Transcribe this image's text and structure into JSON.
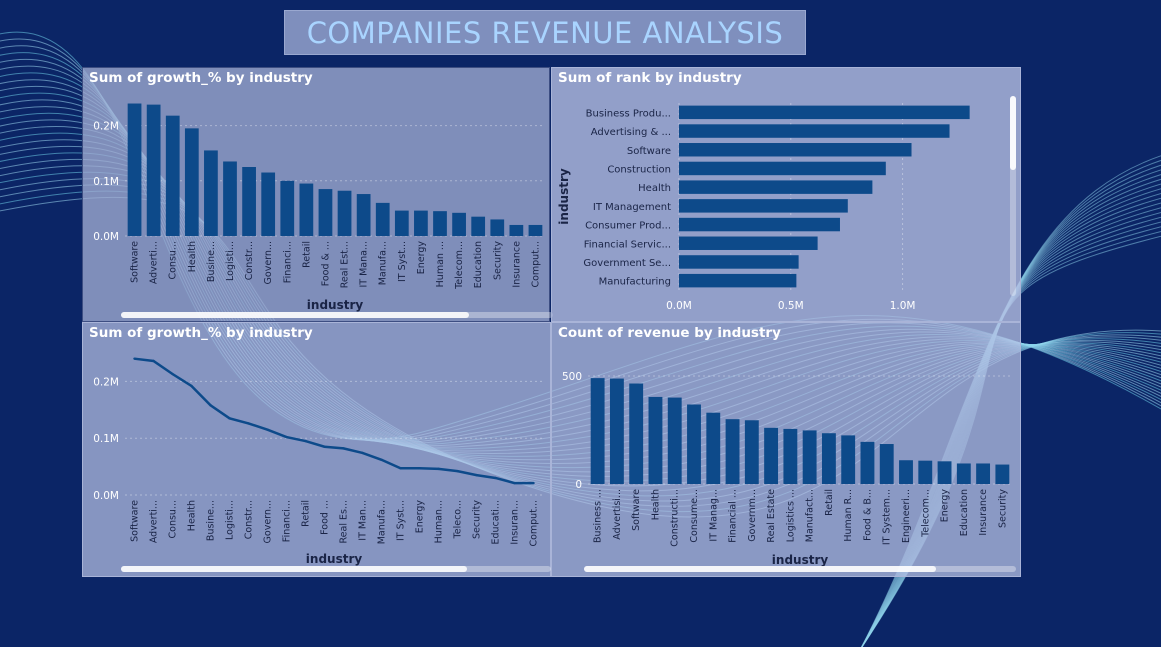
{
  "page_title": "COMPANIES REVENUE ANALYSIS",
  "colors": {
    "background": "#0b2566",
    "bar": "#0d4a8a",
    "panel": "#b8c3e6",
    "title_text": "#a9d4ff"
  },
  "chart_data": [
    {
      "type": "bar",
      "title": "Sum of growth_% by industry",
      "xlabel": "industry",
      "ylabel": "",
      "categories": [
        "Software",
        "Adverti...",
        "Consu...",
        "Health",
        "Busine...",
        "Logisti...",
        "Constr...",
        "Govern...",
        "Financi...",
        "Retail",
        "Food & ...",
        "Real Est...",
        "IT Mana...",
        "Manufa...",
        "IT Syst...",
        "Energy",
        "Human ...",
        "Telecom...",
        "Education",
        "Security",
        "Insurance",
        "Comput..."
      ],
      "values": [
        240000,
        238000,
        218000,
        195000,
        155000,
        135000,
        125000,
        115000,
        100000,
        95000,
        85000,
        82000,
        76000,
        60000,
        46000,
        46000,
        45000,
        42000,
        35000,
        30000,
        20000,
        20000
      ],
      "yticks": [
        "0.0M",
        "0.1M",
        "0.2M"
      ],
      "ylim": [
        0,
        250000
      ],
      "grid": true
    },
    {
      "type": "bar",
      "orientation": "horizontal",
      "title": "Sum of rank by industry",
      "xlabel": "",
      "ylabel": "industry",
      "categories": [
        "Business Produ...",
        "Advertising & ...",
        "Software",
        "Construction",
        "Health",
        "IT Management",
        "Consumer Prod...",
        "Financial Servic...",
        "Government Se...",
        "Manufacturing"
      ],
      "values": [
        1300000,
        1210000,
        1040000,
        925000,
        865000,
        755000,
        720000,
        620000,
        535000,
        525000
      ],
      "xticks": [
        "0.0M",
        "0.5M",
        "1.0M"
      ],
      "xlim": [
        0,
        1400000
      ],
      "grid": true
    },
    {
      "type": "line",
      "title": "Sum of growth_% by industry",
      "xlabel": "industry",
      "ylabel": "",
      "categories": [
        "Software",
        "Adverti...",
        "Consu...",
        "Health",
        "Busine...",
        "Logisti...",
        "Constr...",
        "Govern...",
        "Financi...",
        "Retail",
        "Food ...",
        "Real Es...",
        "IT Man...",
        "Manufa...",
        "IT Syst...",
        "Energy",
        "Human...",
        "Teleco...",
        "Security",
        "Educati...",
        "Insuran...",
        "Comput..."
      ],
      "values": [
        240000,
        236000,
        213000,
        192000,
        158000,
        135000,
        126000,
        115000,
        102000,
        95000,
        85000,
        82000,
        74000,
        62000,
        47000,
        47000,
        46000,
        42000,
        35000,
        30000,
        21000,
        21000
      ],
      "yticks": [
        "0.0M",
        "0.1M",
        "0.2M"
      ],
      "ylim": [
        0,
        250000
      ],
      "grid": true
    },
    {
      "type": "bar",
      "title": "Count of revenue by industry",
      "xlabel": "industry",
      "ylabel": "",
      "categories": [
        "Business ...",
        "Advertisi...",
        "Software",
        "Health",
        "Constructi...",
        "Consume...",
        "IT Manag...",
        "Financial ...",
        "Governm...",
        "Real Estate",
        "Logistics ...",
        "Manufact...",
        "Retail",
        "Human R...",
        "Food & B...",
        "IT System...",
        "Engineeri...",
        "Telecom...",
        "Energy",
        "Education",
        "Insurance",
        "Security"
      ],
      "values": [
        490,
        488,
        465,
        403,
        400,
        368,
        330,
        300,
        295,
        260,
        255,
        248,
        235,
        225,
        195,
        185,
        110,
        108,
        105,
        95,
        95,
        90
      ],
      "yticks": [
        "0",
        "500"
      ],
      "ylim": [
        0,
        560
      ],
      "grid": true
    }
  ]
}
